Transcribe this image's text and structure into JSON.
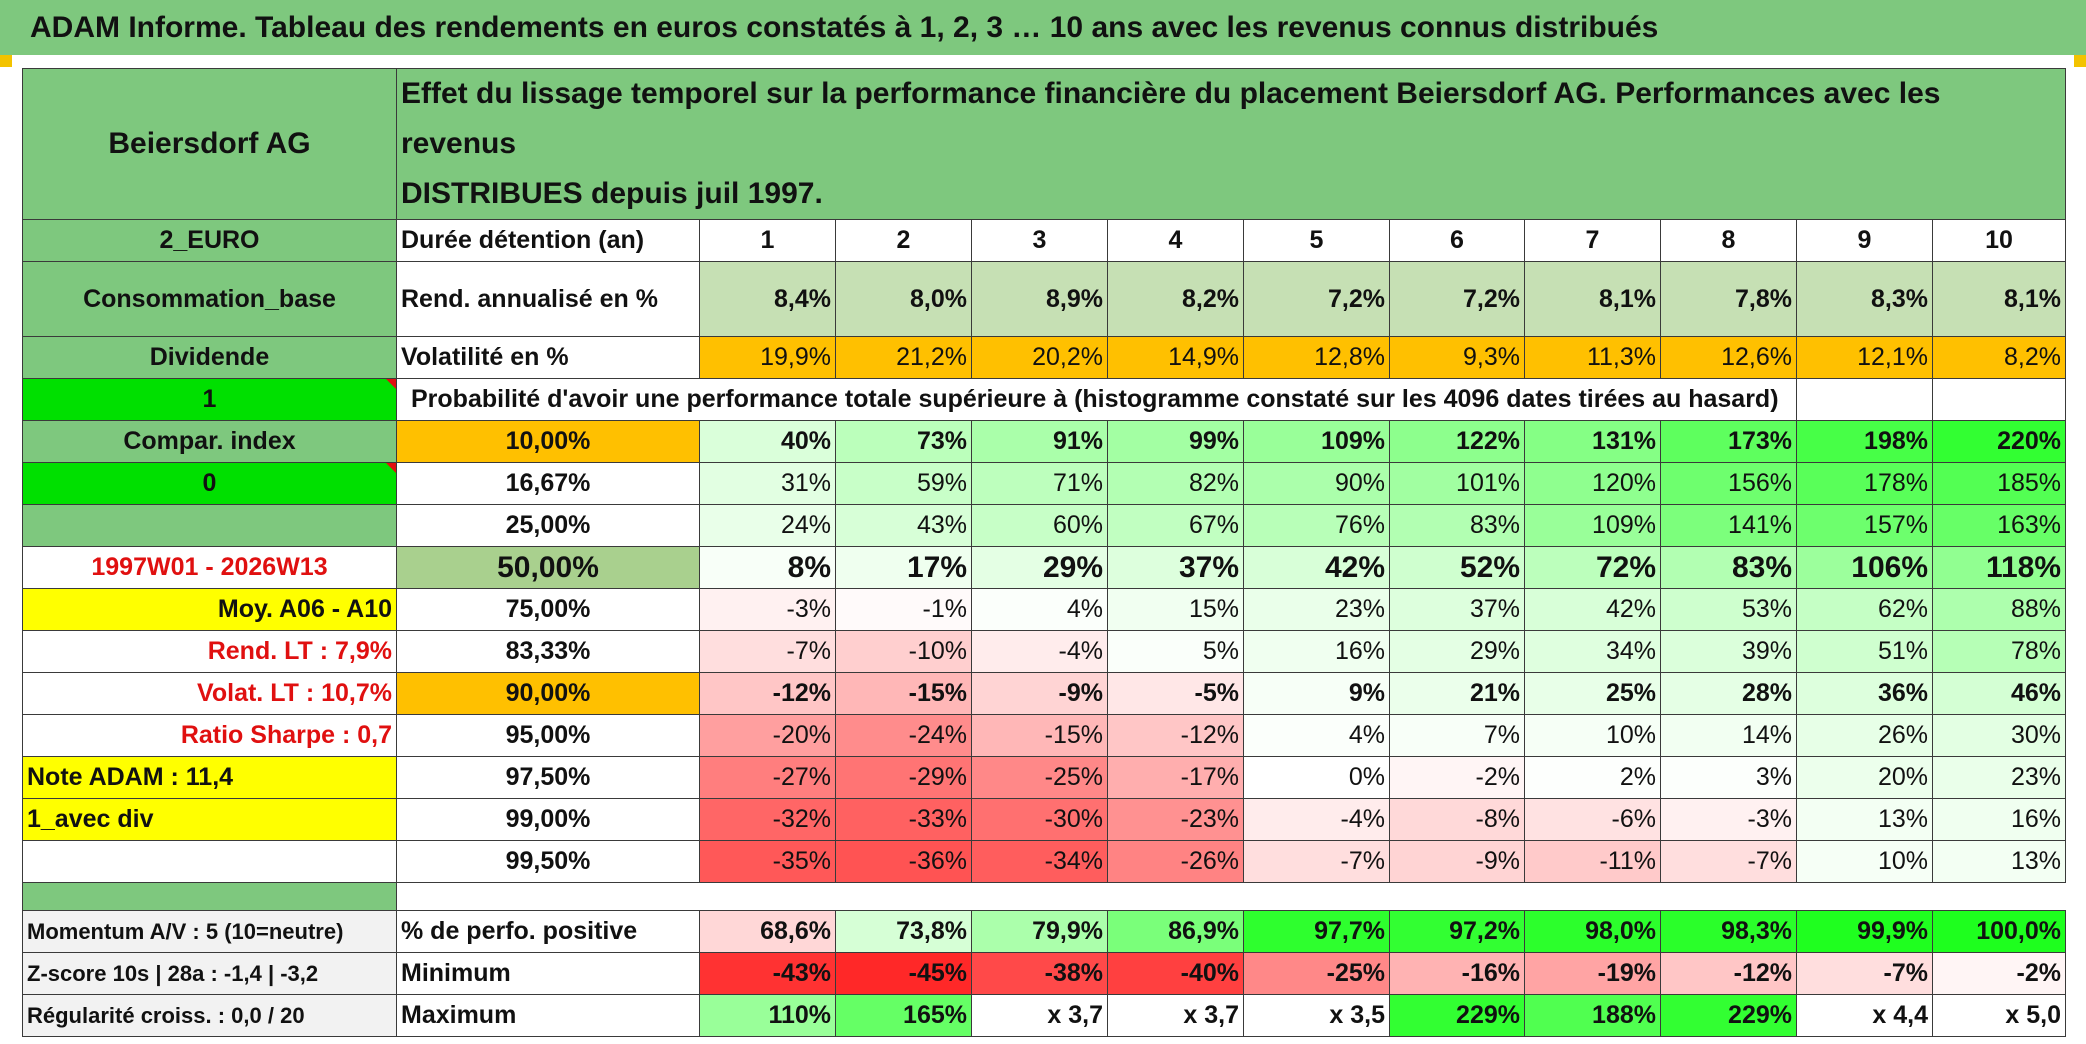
{
  "title": "ADAM Informe. Tableau des rendements en euros constatés à 1, 2, 3 … 10 ans avec les revenus connus distribués",
  "header": {
    "asset": "Beiersdorf AG",
    "description_line1": "Effet du lissage temporel sur la performance financière du placement Beiersdorf AG. Performances avec les revenus",
    "description_line2": "DISTRIBUES depuis juil 1997."
  },
  "left_column": {
    "currency": "2_EURO",
    "sector": "Consommation_base",
    "income_type": "Dividende",
    "selector_value": "1",
    "compar_index": "Compar. index",
    "compar_value": "0",
    "period": "1997W01 - 2026W13",
    "moy": "Moy. A06 - A10",
    "rend_lt": "Rend. LT :   7,9%",
    "volat_lt": "Volat. LT :   10,7%",
    "ratio_sharpe": "Ratio Sharpe :   0,7",
    "note_adam": "Note ADAM : 11,4",
    "avec_div": "1_avec div",
    "momentum": "Momentum A/V : 5 (10=neutre)",
    "zscore": "Z-score 10s | 28a : -1,4 | -3,2",
    "regularite": "Régularité croiss. : 0,0 / 20"
  },
  "labels": {
    "duree": "Durée détention (an)",
    "rend": "Rend. annualisé en %",
    "volat": "Volatilité en %",
    "proba": "Probabilité d'avoir une performance totale supérieure à (histogramme constaté sur les 4096 dates tirées au hasard)",
    "perfo_pos": "% de perfo. positive",
    "minimum": "Minimum",
    "maximum": "Maximum"
  },
  "years": [
    "1",
    "2",
    "3",
    "4",
    "5",
    "6",
    "7",
    "8",
    "9",
    "10"
  ],
  "rendement": [
    "8,4%",
    "8,0%",
    "8,9%",
    "8,2%",
    "7,2%",
    "7,2%",
    "8,1%",
    "7,8%",
    "8,3%",
    "8,1%"
  ],
  "volatilite": [
    "19,9%",
    "21,2%",
    "20,2%",
    "14,9%",
    "12,8%",
    "9,3%",
    "11,3%",
    "12,6%",
    "12,1%",
    "8,2%"
  ],
  "percentiles": [
    {
      "p": "10,00%",
      "values": [
        "40%",
        "73%",
        "91%",
        "99%",
        "109%",
        "122%",
        "131%",
        "173%",
        "198%",
        "220%"
      ]
    },
    {
      "p": "16,67%",
      "values": [
        "31%",
        "59%",
        "71%",
        "82%",
        "90%",
        "101%",
        "120%",
        "156%",
        "178%",
        "185%"
      ]
    },
    {
      "p": "25,00%",
      "values": [
        "24%",
        "43%",
        "60%",
        "67%",
        "76%",
        "83%",
        "109%",
        "141%",
        "157%",
        "163%"
      ]
    },
    {
      "p": "50,00%",
      "values": [
        "8%",
        "17%",
        "29%",
        "37%",
        "42%",
        "52%",
        "72%",
        "83%",
        "106%",
        "118%"
      ]
    },
    {
      "p": "75,00%",
      "values": [
        "-3%",
        "-1%",
        "4%",
        "15%",
        "23%",
        "37%",
        "42%",
        "53%",
        "62%",
        "88%"
      ]
    },
    {
      "p": "83,33%",
      "values": [
        "-7%",
        "-10%",
        "-4%",
        "5%",
        "16%",
        "29%",
        "34%",
        "39%",
        "51%",
        "78%"
      ]
    },
    {
      "p": "90,00%",
      "values": [
        "-12%",
        "-15%",
        "-9%",
        "-5%",
        "9%",
        "21%",
        "25%",
        "28%",
        "36%",
        "46%"
      ]
    },
    {
      "p": "95,00%",
      "values": [
        "-20%",
        "-24%",
        "-15%",
        "-12%",
        "4%",
        "7%",
        "10%",
        "14%",
        "26%",
        "30%"
      ]
    },
    {
      "p": "97,50%",
      "values": [
        "-27%",
        "-29%",
        "-25%",
        "-17%",
        "0%",
        "-2%",
        "2%",
        "3%",
        "20%",
        "23%"
      ]
    },
    {
      "p": "99,00%",
      "values": [
        "-32%",
        "-33%",
        "-30%",
        "-23%",
        "-4%",
        "-8%",
        "-6%",
        "-3%",
        "13%",
        "16%"
      ]
    },
    {
      "p": "99,50%",
      "values": [
        "-35%",
        "-36%",
        "-34%",
        "-26%",
        "-7%",
        "-9%",
        "-11%",
        "-7%",
        "10%",
        "13%"
      ]
    }
  ],
  "perfo_positive": [
    "68,6%",
    "73,8%",
    "79,9%",
    "86,9%",
    "97,7%",
    "97,2%",
    "98,0%",
    "98,3%",
    "99,9%",
    "100,0%"
  ],
  "minimum": [
    "-43%",
    "-45%",
    "-38%",
    "-40%",
    "-25%",
    "-16%",
    "-19%",
    "-12%",
    "-7%",
    "-2%"
  ],
  "maximum": [
    "110%",
    "165%",
    "x 3,7",
    "x 3,7",
    "x 3,5",
    "229%",
    "188%",
    "229%",
    "x 4,4",
    "x 5,0"
  ],
  "colors": {
    "header_green": "#7ec87e",
    "light_green": "#c6e0b4",
    "orange": "#ffc000",
    "yellow": "#ffff00",
    "bright_green": "#00e000",
    "red_text": "#e01010",
    "neg_red": "#f8696b",
    "pos_green": "#00ff00"
  }
}
